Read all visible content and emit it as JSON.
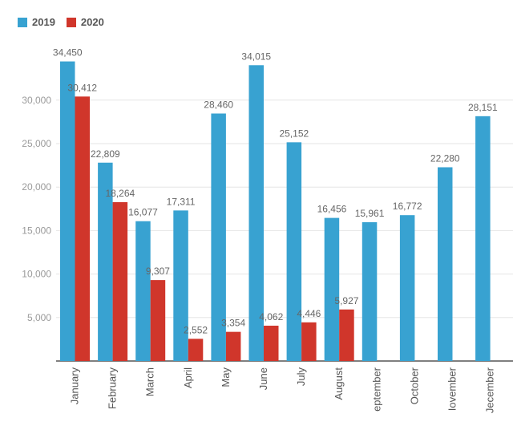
{
  "chart_data": {
    "type": "bar",
    "title": "",
    "xlabel": "",
    "ylabel": "",
    "categories": [
      "January",
      "February",
      "March",
      "April",
      "May",
      "June",
      "July",
      "August",
      "September",
      "October",
      "November",
      "December"
    ],
    "category_display": [
      "January",
      "February",
      "March",
      "April",
      "May",
      "June",
      "July",
      "August",
      "eptember",
      "October",
      "Iovember",
      "Jecember"
    ],
    "series": [
      {
        "name": "2019",
        "color": "#38a2d1",
        "values": [
          34450,
          22809,
          16077,
          17311,
          28460,
          34015,
          25152,
          16456,
          15961,
          16772,
          22280,
          28151
        ],
        "labels": [
          "34,450",
          "22,809",
          "16,077",
          "17,311",
          "28,460",
          "34,015",
          "25,152",
          "16,456",
          "15,961",
          "16,772",
          "22,280",
          "28,151"
        ]
      },
      {
        "name": "2020",
        "color": "#d0362b",
        "values": [
          30412,
          18264,
          9307,
          2552,
          3354,
          4062,
          4446,
          5927,
          null,
          null,
          null,
          null
        ],
        "labels": [
          "30,412",
          "18,264",
          "9,307",
          "2,552",
          "3,354",
          "4,062",
          "4,446",
          "5,927",
          null,
          null,
          null,
          null
        ]
      }
    ],
    "ylim": [
      0,
      35000
    ],
    "yticks": [
      5000,
      10000,
      15000,
      20000,
      25000,
      30000
    ],
    "ytick_labels": [
      "5,000",
      "10,000",
      "15,000",
      "20,000",
      "25,000",
      "30,000"
    ],
    "grid": true,
    "legend_position": "top-left"
  }
}
